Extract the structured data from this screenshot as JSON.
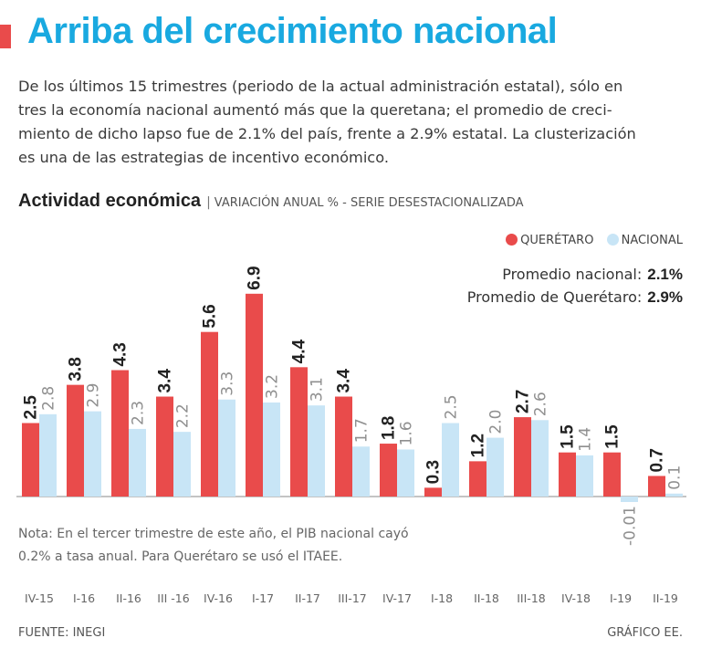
{
  "header": {
    "title": "Arriba del crecimiento nacional",
    "intro_lines": [
      "De los últimos 15 trimestres (periodo de la actual administración estatal), sólo en",
      "tres la economía nacional aumentó más que la queretana; el promedio de creci-",
      "miento de dicho lapso fue de 2.1% del país, frente a 2.9% estatal. La clusterización",
      "es una de las estrategias de incentivo económico."
    ]
  },
  "colors": {
    "accent": "#19a9e0",
    "queretaro": "#e94b4b",
    "nacional": "#c8e5f6"
  },
  "legend": {
    "queretaro": "QUERÉTARO",
    "nacional": "NACIONAL"
  },
  "averages": {
    "nacional_label": "Promedio nacional:",
    "nacional_value": "2.1%",
    "queretaro_label": "Promedio de Querétaro:",
    "queretaro_value": "2.9%"
  },
  "note_lines": [
    "Nota: En el tercer trimestre de este año, el PIB nacional cayó",
    "0.2% a tasa anual. Para Querétaro se usó el ITAEE."
  ],
  "footer": {
    "source": "FUENTE: INEGI",
    "credit": "GRÁFICO EE."
  },
  "chart_data": {
    "type": "bar",
    "title": "Actividad económica",
    "subtitle": "VARIACIÓN ANUAL % - SERIE DESESTACIONALIZADA",
    "categories": [
      "IV-15",
      "I-16",
      "II-16",
      "III -16",
      "IV-16",
      "I-17",
      "II-17",
      "III-17",
      "IV-17",
      "I-18",
      "II-18",
      "III-18",
      "IV-18",
      "I-19",
      "II-19"
    ],
    "series": [
      {
        "name": "QUERÉTARO",
        "values": [
          2.5,
          3.8,
          4.3,
          3.4,
          5.6,
          6.9,
          4.4,
          3.4,
          1.8,
          0.3,
          1.2,
          2.7,
          1.5,
          1.5,
          0.7
        ],
        "labels": [
          "2.5",
          "3.8",
          "4.3",
          "3.4",
          "5.6",
          "6.9",
          "4.4",
          "3.4",
          "1.8",
          "0.3",
          "1.2",
          "2.7",
          "1.5",
          "1.5",
          "0.7"
        ]
      },
      {
        "name": "NACIONAL",
        "values": [
          2.8,
          2.9,
          2.3,
          2.2,
          3.3,
          3.2,
          3.1,
          1.7,
          1.6,
          2.5,
          2.0,
          2.6,
          1.4,
          -0.01,
          0.1
        ],
        "labels": [
          "2.8",
          "2.9",
          "2.3",
          "2.2",
          "3.3",
          "3.2",
          "3.1",
          "1.7",
          "1.6",
          "2.5",
          "2.0",
          "2.6",
          "1.4",
          "-0.01",
          "0.1"
        ]
      }
    ],
    "ylim": [
      -0.2,
      7
    ]
  }
}
